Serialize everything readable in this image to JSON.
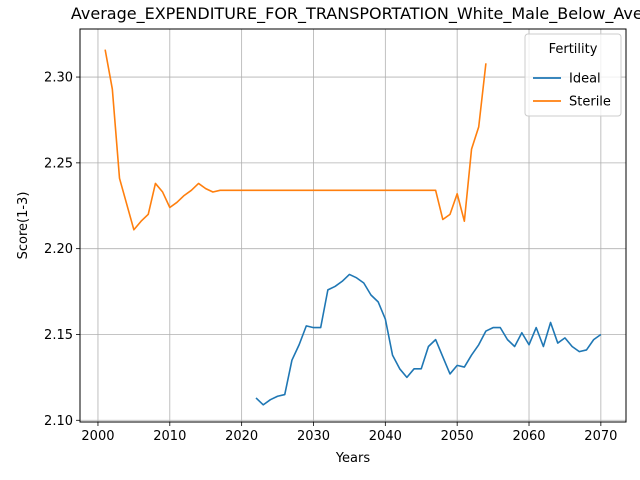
{
  "chart_data": {
    "type": "line",
    "title": "Average_EXPENDITURE_FOR_TRANSPORTATION_White_Male_Below_Average",
    "xlabel": "Years",
    "ylabel": "Score(1-3)",
    "xlim": [
      1997.5,
      2073.5
    ],
    "ylim": [
      2.099,
      2.328
    ],
    "xticks": [
      2000,
      2010,
      2020,
      2030,
      2040,
      2050,
      2060,
      2070
    ],
    "yticks": [
      2.1,
      2.15,
      2.2,
      2.25,
      2.3
    ],
    "ytick_labels": [
      "2.10",
      "2.15",
      "2.20",
      "2.25",
      "2.30"
    ],
    "grid": true,
    "legend": {
      "title": "Fertility",
      "placement": "top-right"
    },
    "series": [
      {
        "name": "Ideal",
        "color": "#1f77b4",
        "x": [
          2022,
          2023,
          2024,
          2025,
          2026,
          2027,
          2028,
          2029,
          2030,
          2031,
          2032,
          2033,
          2034,
          2035,
          2036,
          2037,
          2038,
          2039,
          2040,
          2041,
          2042,
          2043,
          2044,
          2045,
          2046,
          2047,
          2048,
          2049,
          2050,
          2051,
          2052,
          2053,
          2054,
          2055,
          2056,
          2057,
          2058,
          2059,
          2060,
          2061,
          2062,
          2063,
          2064,
          2065,
          2066,
          2067,
          2068,
          2069,
          2070
        ],
        "y": [
          2.113,
          2.109,
          2.112,
          2.114,
          2.115,
          2.135,
          2.144,
          2.155,
          2.154,
          2.154,
          2.176,
          2.178,
          2.181,
          2.185,
          2.183,
          2.18,
          2.173,
          2.169,
          2.159,
          2.138,
          2.13,
          2.125,
          2.13,
          2.13,
          2.143,
          2.147,
          2.137,
          2.127,
          2.132,
          2.131,
          2.138,
          2.144,
          2.152,
          2.154,
          2.154,
          2.147,
          2.143,
          2.151,
          2.144,
          2.154,
          2.143,
          2.157,
          2.145,
          2.148,
          2.143,
          2.14,
          2.141,
          2.147,
          2.15
        ]
      },
      {
        "name": "Sterile",
        "color": "#ff7f0e",
        "x": [
          2001,
          2002,
          2003,
          2004,
          2005,
          2006,
          2007,
          2008,
          2009,
          2010,
          2011,
          2012,
          2013,
          2014,
          2015,
          2016,
          2017,
          2018,
          2019,
          2020,
          2025,
          2030,
          2035,
          2040,
          2045,
          2046,
          2047,
          2048,
          2049,
          2050,
          2051,
          2052,
          2053,
          2054
        ],
        "y": [
          2.316,
          2.293,
          2.241,
          2.226,
          2.211,
          2.216,
          2.22,
          2.238,
          2.233,
          2.224,
          2.227,
          2.231,
          2.234,
          2.238,
          2.235,
          2.233,
          2.234,
          2.234,
          2.234,
          2.234,
          2.234,
          2.234,
          2.234,
          2.234,
          2.234,
          2.234,
          2.234,
          2.217,
          2.22,
          2.232,
          2.216,
          2.258,
          2.271,
          2.308
        ]
      }
    ]
  }
}
